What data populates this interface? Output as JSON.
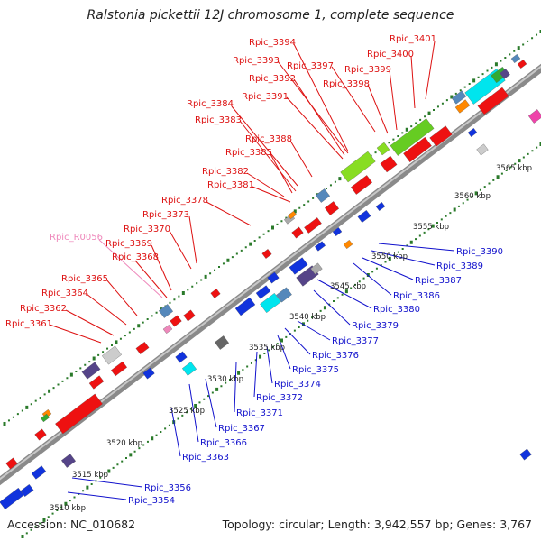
{
  "title": "Ralstonia pickettii 12J chromosome 1, complete sequence",
  "footer": {
    "accession": "Accession: NC_010682",
    "summary": "Topology: circular; Length: 3,942,557 bp; Genes: 3,767"
  },
  "colors": {
    "forward_label": "#dd1111",
    "reverse_label": "#1111cc",
    "rna_label": "#ee88bb",
    "backbone": "#9a9a9a",
    "tick": "#2a7a2a"
  },
  "scale_labels": [
    "3510 kbp",
    "3515 kbp",
    "3520 kbp",
    "3525 kbp",
    "3530 kbp",
    "3535 kbp",
    "3540 kbp",
    "3545 kbp",
    "3550 kbp",
    "3555 kbp",
    "3560 kbp",
    "3565 kbp"
  ],
  "forward_labels": [
    "Rpic_3361",
    "Rpic_3362",
    "Rpic_3364",
    "Rpic_3365",
    "Rpic_3368",
    "Rpic_3369",
    "Rpic_3370",
    "Rpic_3373",
    "Rpic_3378",
    "Rpic_3381",
    "Rpic_3382",
    "Rpic_3385",
    "Rpic_3388",
    "Rpic_3383",
    "Rpic_3384",
    "Rpic_3391",
    "Rpic_3392",
    "Rpic_3393",
    "Rpic_3394",
    "Rpic_3397",
    "Rpic_3398",
    "Rpic_3399",
    "Rpic_3400",
    "Rpic_3401"
  ],
  "rna_labels": [
    "Rpic_R0056"
  ],
  "reverse_labels": [
    "Rpic_3354",
    "Rpic_3356",
    "Rpic_3363",
    "Rpic_3366",
    "Rpic_3367",
    "Rpic_3371",
    "Rpic_3372",
    "Rpic_3374",
    "Rpic_3375",
    "Rpic_3376",
    "Rpic_3377",
    "Rpic_3379",
    "Rpic_3380",
    "Rpic_3386",
    "Rpic_3387",
    "Rpic_3389",
    "Rpic_3390"
  ]
}
